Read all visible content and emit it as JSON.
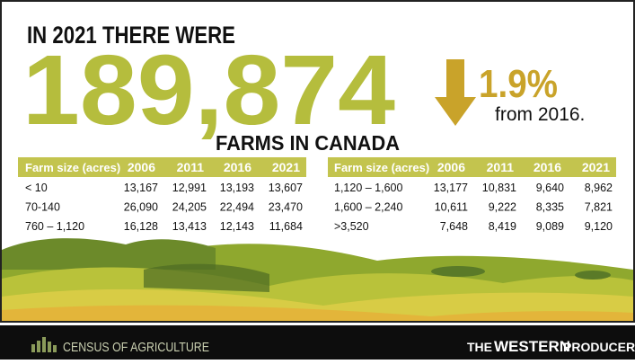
{
  "headline": {
    "intro": "IN 2021 THERE WERE",
    "number": "189,874",
    "suffix": "FARMS IN CANADA"
  },
  "change": {
    "value": "1.9%",
    "text": "from 2016."
  },
  "tables": [
    {
      "header": [
        "Farm size (acres)",
        "2006",
        "2011",
        "2016",
        "2021"
      ],
      "rows": [
        [
          "< 10",
          "13,167",
          "12,991",
          "13,193",
          "13,607"
        ],
        [
          "70-140",
          "26,090",
          "24,205",
          "22,494",
          "23,470"
        ],
        [
          "760 – 1,120",
          "16,128",
          "13,413",
          "12,143",
          "11,684"
        ]
      ]
    },
    {
      "header": [
        "Farm size (acres)",
        "2006",
        "2011",
        "2016",
        "2021"
      ],
      "rows": [
        [
          "1,120 – 1,600",
          "13,177",
          "10,831",
          "9,640",
          "8,962"
        ],
        [
          "1,600 – 2,240",
          "10,611",
          "9,222",
          "8,335",
          "7,821"
        ],
        [
          ">3,520",
          "7,648",
          "8,419",
          "9,089",
          "9,120"
        ]
      ]
    }
  ],
  "footer": {
    "left": "CENSUS OF AGRICULTURE",
    "right_a": "THE",
    "right_b": "WESTERN",
    "right_c": "PRODUCER"
  }
}
